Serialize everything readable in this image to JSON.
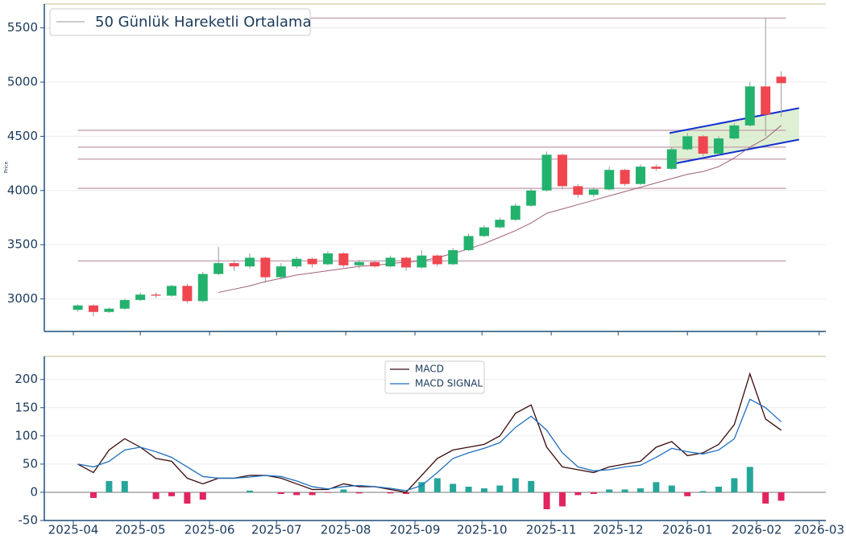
{
  "chart_data": [
    {
      "type": "candlestick",
      "ylabel": "Price",
      "x": [
        "2025-04-03",
        "2025-04-10",
        "2025-04-17",
        "2025-04-24",
        "2025-05-01",
        "2025-05-08",
        "2025-05-15",
        "2025-05-22",
        "2025-05-29",
        "2025-06-05",
        "2025-06-12",
        "2025-06-19",
        "2025-06-26",
        "2025-07-03",
        "2025-07-10",
        "2025-07-17",
        "2025-07-24",
        "2025-07-31",
        "2025-08-07",
        "2025-08-14",
        "2025-08-21",
        "2025-08-28",
        "2025-09-04",
        "2025-09-11",
        "2025-09-18",
        "2025-09-25",
        "2025-10-02",
        "2025-10-09",
        "2025-10-16",
        "2025-10-23",
        "2025-10-30",
        "2025-11-06",
        "2025-11-13",
        "2025-11-20",
        "2025-11-27",
        "2025-12-04",
        "2025-12-11",
        "2025-12-18",
        "2025-12-25",
        "2026-01-01",
        "2026-01-08",
        "2026-01-15",
        "2026-01-22",
        "2026-01-29",
        "2026-02-05",
        "2026-02-12"
      ],
      "open": [
        2900,
        2940,
        2880,
        2910,
        2990,
        3040,
        3030,
        3120,
        2980,
        3230,
        3330,
        3300,
        3380,
        3200,
        3300,
        3370,
        3320,
        3420,
        3310,
        3340,
        3300,
        3380,
        3290,
        3400,
        3320,
        3450,
        3580,
        3660,
        3730,
        3860,
        4000,
        4330,
        4040,
        3960,
        4010,
        4190,
        4060,
        4220,
        4200,
        4380,
        4500,
        4340,
        4480,
        4600,
        4960,
        5050
      ],
      "high": [
        2950,
        2950,
        2920,
        3000,
        3060,
        3060,
        3130,
        3140,
        3250,
        3480,
        3360,
        3420,
        3390,
        3330,
        3390,
        3380,
        3440,
        3430,
        3360,
        3350,
        3400,
        3390,
        3450,
        3410,
        3470,
        3600,
        3680,
        3750,
        3880,
        4020,
        4360,
        4340,
        4060,
        4030,
        4220,
        4200,
        4240,
        4240,
        4400,
        4530,
        4510,
        4500,
        4620,
        5000,
        5590,
        5100
      ],
      "low": [
        2880,
        2840,
        2870,
        2900,
        2980,
        3010,
        3020,
        2960,
        2970,
        3220,
        3260,
        3280,
        3150,
        3180,
        3280,
        3290,
        3310,
        3290,
        3280,
        3290,
        3290,
        3260,
        3280,
        3300,
        3310,
        3440,
        3570,
        3650,
        3720,
        3850,
        3990,
        4010,
        3930,
        3940,
        4000,
        4040,
        4050,
        4180,
        4190,
        4370,
        4320,
        4330,
        4470,
        4590,
        4500,
        4680
      ],
      "close": [
        2940,
        2880,
        2910,
        2990,
        3040,
        3030,
        3120,
        2980,
        3230,
        3330,
        3300,
        3380,
        3200,
        3300,
        3370,
        3320,
        3420,
        3310,
        3340,
        3300,
        3380,
        3290,
        3400,
        3320,
        3450,
        3580,
        3660,
        3730,
        3860,
        4000,
        4330,
        4040,
        3960,
        4010,
        4190,
        4060,
        4220,
        4200,
        4380,
        4500,
        4340,
        4480,
        4600,
        4960,
        4700,
        4990
      ],
      "up_color": "#23b26d",
      "down_color": "#f0464f",
      "ma": {
        "name": "50 Günlük Hareketli Ortalama",
        "color": "#a0607a",
        "values": [
          null,
          null,
          null,
          null,
          null,
          null,
          null,
          null,
          null,
          3060,
          3090,
          3120,
          3160,
          3190,
          3220,
          3240,
          3260,
          3280,
          3300,
          3310,
          3325,
          3340,
          3350,
          3380,
          3420,
          3460,
          3510,
          3570,
          3630,
          3700,
          3790,
          3830,
          3870,
          3910,
          3950,
          3990,
          4030,
          4070,
          4110,
          4150,
          4175,
          4220,
          4300,
          4400,
          4480,
          4600
        ]
      },
      "levels": [
        3350,
        4020,
        4290,
        4400,
        4555,
        5590
      ],
      "level_color": "#c9a9b6",
      "channel": {
        "x": [
          "2025-12-24",
          "2026-02-20"
        ],
        "upper": [
          4530,
          4760
        ],
        "lower": [
          4240,
          4470
        ],
        "color": "#1030d0",
        "fill": "#d6ebc8"
      },
      "xlim": [
        "2025-03-19",
        "2026-03-04"
      ],
      "ylim": [
        2700,
        5720
      ],
      "yticks": [
        3000,
        3500,
        4000,
        4500,
        5000,
        5500
      ],
      "grid": true
    },
    {
      "type": "macd",
      "series": [
        {
          "name": "MACD",
          "color": "#3a0a0a",
          "values": [
            50,
            35,
            75,
            95,
            80,
            60,
            55,
            25,
            15,
            25,
            25,
            30,
            30,
            25,
            15,
            5,
            5,
            15,
            10,
            10,
            5,
            0,
            30,
            60,
            75,
            80,
            85,
            100,
            140,
            155,
            80,
            45,
            40,
            35,
            45,
            50,
            55,
            80,
            90,
            65,
            70,
            85,
            120,
            210,
            130,
            110
          ]
        },
        {
          "name": "MACD SIGNAL",
          "color": "#1f6fbf",
          "values": [
            50,
            45,
            55,
            75,
            80,
            72,
            62,
            45,
            28,
            25,
            25,
            27,
            30,
            28,
            20,
            10,
            6,
            10,
            12,
            10,
            7,
            3,
            12,
            35,
            60,
            70,
            78,
            88,
            115,
            135,
            110,
            70,
            45,
            38,
            40,
            45,
            48,
            62,
            78,
            72,
            68,
            75,
            95,
            165,
            150,
            125
          ]
        }
      ],
      "histogram": {
        "values": [
          0,
          -10,
          20,
          20,
          0,
          -12,
          -7,
          -20,
          -13,
          0,
          0,
          3,
          0,
          -3,
          -5,
          -5,
          -1,
          5,
          -2,
          0,
          -2,
          -3,
          18,
          25,
          15,
          10,
          7,
          12,
          25,
          20,
          -30,
          -25,
          -5,
          -3,
          5,
          5,
          7,
          18,
          12,
          -7,
          2,
          10,
          25,
          45,
          -20,
          -15
        ],
        "up_color": "#26a69a",
        "down_color": "#e2245f"
      },
      "ylim": [
        -50,
        241
      ],
      "yticks": [
        -50,
        0,
        50,
        100,
        150,
        200
      ],
      "xticks": [
        {
          "value": "2025-04-01",
          "label": "2025-04"
        },
        {
          "value": "2025-05-01",
          "label": "2025-05"
        },
        {
          "value": "2025-06-01",
          "label": "2025-06"
        },
        {
          "value": "2025-07-01",
          "label": "2025-07"
        },
        {
          "value": "2025-08-01",
          "label": "2025-08"
        },
        {
          "value": "2025-09-01",
          "label": "2025-09"
        },
        {
          "value": "2025-10-01",
          "label": "2025-10"
        },
        {
          "value": "2025-11-01",
          "label": "2025-11"
        },
        {
          "value": "2025-12-01",
          "label": "2025-12"
        },
        {
          "value": "2026-01-01",
          "label": "2026-01"
        },
        {
          "value": "2026-02-01",
          "label": "2026-02"
        },
        {
          "value": "2026-03-01",
          "label": "2026-03"
        }
      ],
      "grid": true
    }
  ]
}
